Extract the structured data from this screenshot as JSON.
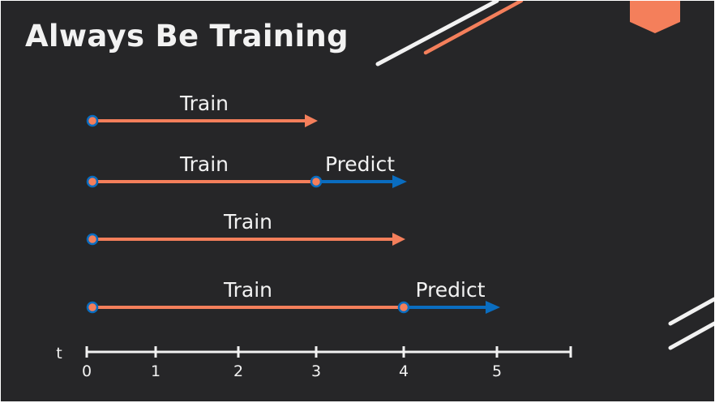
{
  "title": "Always Be Training",
  "colors": {
    "background": "#262628",
    "train": "#f47f5b",
    "predict": "#0a6dc0",
    "axis": "#f2f2f2",
    "text": "#f2f2f2"
  },
  "axis": {
    "label": "t",
    "ticks": [
      "0",
      "1",
      "2",
      "3",
      "4",
      "5"
    ]
  },
  "rows": [
    {
      "train_label": "Train",
      "train_end": 3,
      "predict_label": "",
      "predict_end": null
    },
    {
      "train_label": "Train",
      "train_end": 3,
      "predict_label": "Predict",
      "predict_end": 4
    },
    {
      "train_label": "Train",
      "train_end": 4,
      "predict_label": "",
      "predict_end": null
    },
    {
      "train_label": "Train",
      "train_end": 4,
      "predict_label": "Predict",
      "predict_end": 5
    }
  ],
  "decorations": [
    "slash-lines-top",
    "pentagon-badge",
    "slash-lines-bottom-right"
  ]
}
